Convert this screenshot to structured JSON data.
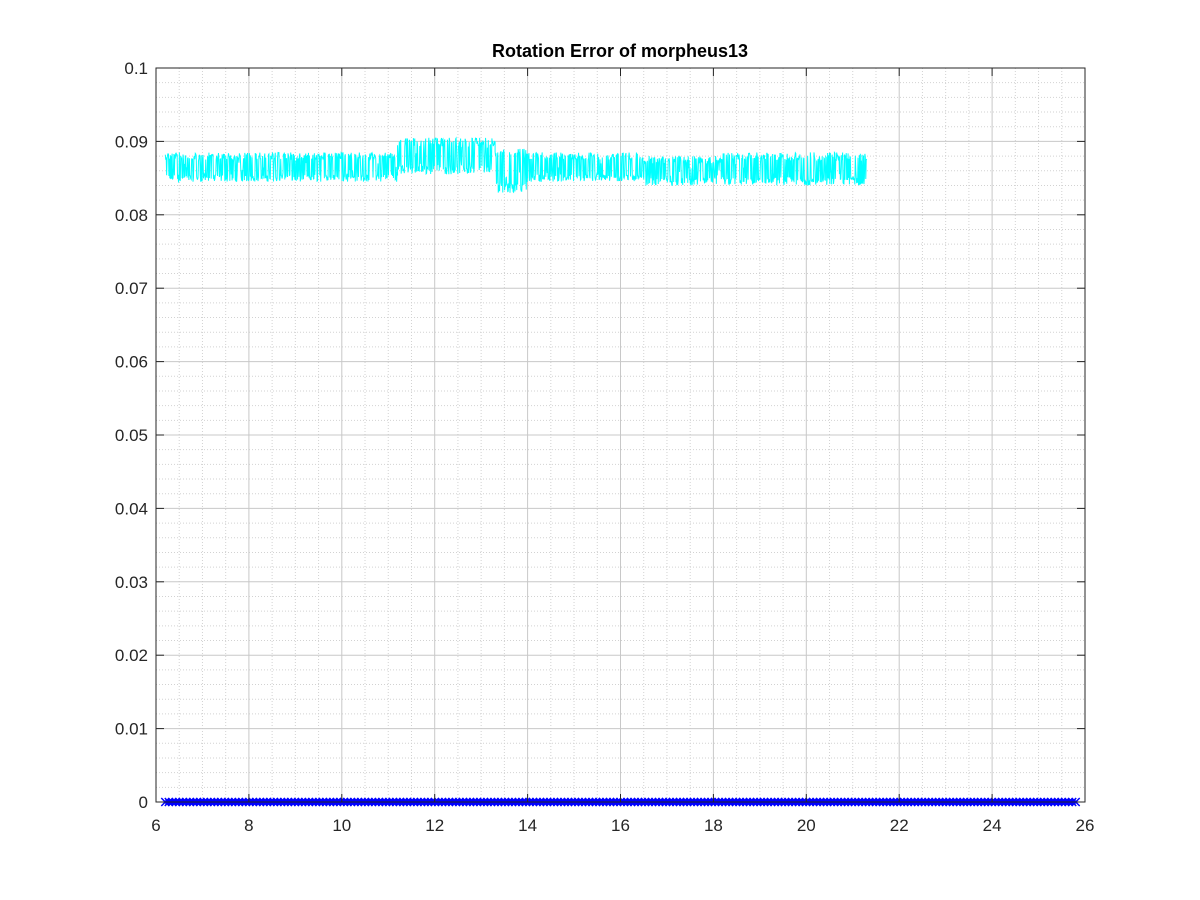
{
  "chart_data": {
    "type": "line",
    "title": "Rotation Error of morpheus13",
    "xlabel": "",
    "ylabel": "",
    "xlim": [
      6,
      26
    ],
    "ylim": [
      0,
      0.1
    ],
    "x_ticks": [
      "6",
      "8",
      "10",
      "12",
      "14",
      "16",
      "18",
      "20",
      "22",
      "24",
      "26"
    ],
    "y_ticks": [
      "0",
      "0.01",
      "0.02",
      "0.03",
      "0.04",
      "0.05",
      "0.06",
      "0.07",
      "0.08",
      "0.09",
      "0.1"
    ],
    "grid": true,
    "minor_grid": true,
    "legend": "none",
    "series": [
      {
        "color": "#00ffff",
        "style": "line",
        "x_range": [
          6.2,
          21.3
        ],
        "segments": [
          {
            "x": [
              6.2,
              11.2
            ],
            "low": 0.0845,
            "high": 0.0885
          },
          {
            "x": [
              11.2,
              13.3
            ],
            "low": 0.0855,
            "high": 0.0905
          },
          {
            "x": [
              13.3,
              14.0
            ],
            "low": 0.083,
            "high": 0.089
          },
          {
            "x": [
              14.0,
              16.5
            ],
            "low": 0.0845,
            "high": 0.0885
          },
          {
            "x": [
              16.5,
              18.2
            ],
            "low": 0.084,
            "high": 0.088
          },
          {
            "x": [
              18.2,
              21.3
            ],
            "low": 0.084,
            "high": 0.0885
          }
        ]
      },
      {
        "color": "#0000ff",
        "style": "markers-x",
        "x_range": [
          6.2,
          25.8
        ],
        "value": 0
      }
    ]
  }
}
